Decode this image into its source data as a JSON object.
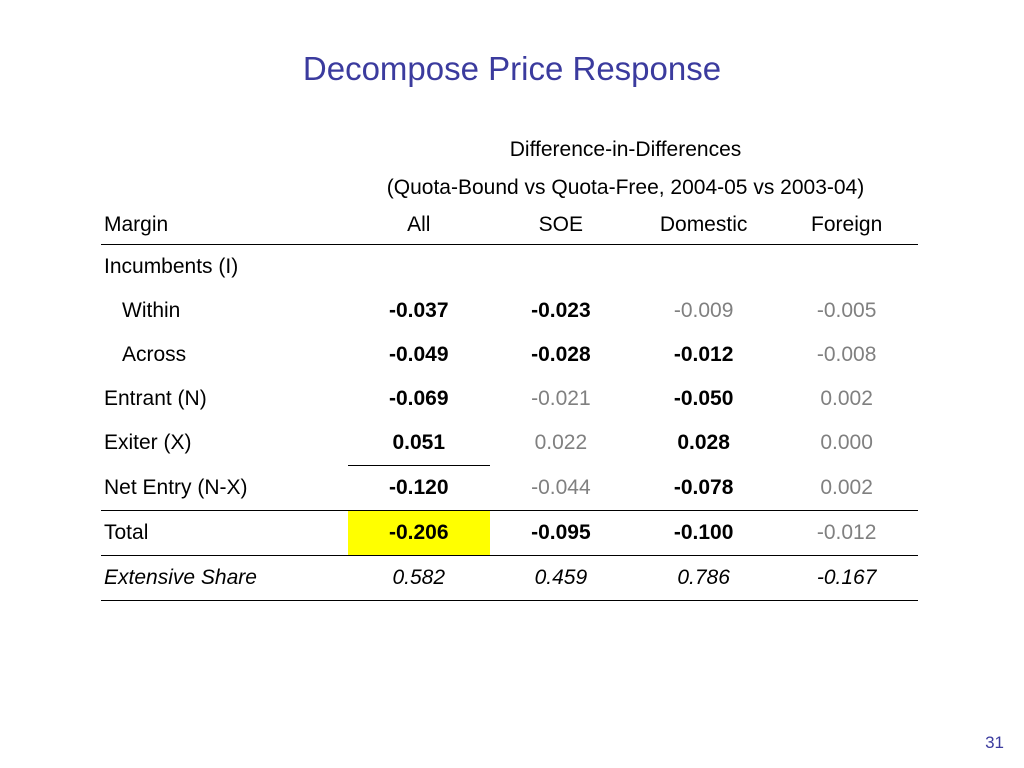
{
  "title": "Decompose Price Response",
  "header": {
    "line1": "Difference-in-Differences",
    "line2": "(Quota-Bound vs Quota-Free, 2004-05 vs 2003-04)"
  },
  "columns": [
    "Margin",
    "All",
    "SOE",
    "Domestic",
    "Foreign"
  ],
  "rows": {
    "incumbents": {
      "label": "Incumbents (I)"
    },
    "within": {
      "label": "Within",
      "values": [
        "-0.037",
        "-0.023",
        "-0.009",
        "-0.005"
      ]
    },
    "across": {
      "label": "Across",
      "values": [
        "-0.049",
        "-0.028",
        "-0.012",
        "-0.008"
      ]
    },
    "entrant": {
      "label": "Entrant (N)",
      "values": [
        "-0.069",
        "-0.021",
        "-0.050",
        "0.002"
      ]
    },
    "exiter": {
      "label": "Exiter (X)",
      "values": [
        "0.051",
        "0.022",
        "0.028",
        "0.000"
      ]
    },
    "net_entry": {
      "label": "Net Entry (N-X)",
      "values": [
        "-0.120",
        "-0.044",
        "-0.078",
        "0.002"
      ]
    },
    "total": {
      "label": "Total",
      "values": [
        "-0.206",
        "-0.095",
        "-0.100",
        "-0.012"
      ]
    },
    "extensive_share": {
      "label": "Extensive Share",
      "values": [
        "0.582",
        "0.459",
        "0.786",
        "-0.167"
      ]
    }
  },
  "highlight_color": "#ffff00",
  "title_color": "#3b3b9e",
  "page_number": "31"
}
